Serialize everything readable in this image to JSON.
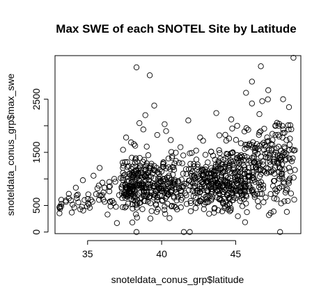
{
  "chart_data": {
    "type": "scatter",
    "title": "Max SWE of each SNOTEL Site by Latitude",
    "xlabel": "snoteldata_conus_grp$latitude",
    "ylabel": "snoteldata_conus_grp$max_swe",
    "xlim": [
      32.8,
      49.4
    ],
    "ylim": [
      -30,
      3320
    ],
    "xticks": [
      35,
      40,
      45
    ],
    "yticks": [
      0,
      500,
      1500,
      2500
    ],
    "grid": false,
    "legend": "none",
    "marker_color": "#000000",
    "clusters": [
      {
        "cx": 33.5,
        "cy": 420,
        "sx": 0.4,
        "sy": 180,
        "n": 14
      },
      {
        "cx": 34.6,
        "cy": 500,
        "sx": 0.5,
        "sy": 200,
        "n": 18
      },
      {
        "cx": 36.2,
        "cy": 520,
        "sx": 0.6,
        "sy": 230,
        "n": 30
      },
      {
        "cx": 37.8,
        "cy": 720,
        "sx": 0.35,
        "sy": 320,
        "n": 90
      },
      {
        "cx": 38.6,
        "cy": 820,
        "sx": 0.45,
        "sy": 380,
        "n": 90
      },
      {
        "cx": 39.6,
        "cy": 760,
        "sx": 0.5,
        "sy": 340,
        "n": 90
      },
      {
        "cx": 40.6,
        "cy": 800,
        "sx": 0.5,
        "sy": 380,
        "n": 70
      },
      {
        "cx": 41.8,
        "cy": 760,
        "sx": 0.55,
        "sy": 330,
        "n": 60
      },
      {
        "cx": 42.9,
        "cy": 820,
        "sx": 0.5,
        "sy": 360,
        "n": 70
      },
      {
        "cx": 43.8,
        "cy": 760,
        "sx": 0.45,
        "sy": 380,
        "n": 90
      },
      {
        "cx": 44.6,
        "cy": 820,
        "sx": 0.45,
        "sy": 400,
        "n": 100
      },
      {
        "cx": 45.5,
        "cy": 860,
        "sx": 0.5,
        "sy": 420,
        "n": 90
      },
      {
        "cx": 46.5,
        "cy": 1050,
        "sx": 0.5,
        "sy": 520,
        "n": 80
      },
      {
        "cx": 47.6,
        "cy": 1150,
        "sx": 0.5,
        "sy": 560,
        "n": 70
      },
      {
        "cx": 48.5,
        "cy": 1100,
        "sx": 0.35,
        "sy": 600,
        "n": 55
      }
    ],
    "highlights": [
      {
        "x": 48.9,
        "y": 3280
      },
      {
        "x": 38.3,
        "y": 3100
      },
      {
        "x": 39.2,
        "y": 2950
      },
      {
        "x": 46.7,
        "y": 3120
      },
      {
        "x": 46.1,
        "y": 2830
      },
      {
        "x": 45.7,
        "y": 2620
      },
      {
        "x": 48.2,
        "y": 2500
      },
      {
        "x": 47.2,
        "y": 2670
      },
      {
        "x": 48.6,
        "y": 2350
      },
      {
        "x": 39.5,
        "y": 2380
      },
      {
        "x": 38.9,
        "y": 2200
      },
      {
        "x": 38.5,
        "y": 2050
      },
      {
        "x": 40.2,
        "y": 2030
      },
      {
        "x": 41.8,
        "y": 2100
      },
      {
        "x": 44.7,
        "y": 2120
      },
      {
        "x": 43.9,
        "y": 1820
      },
      {
        "x": 44.3,
        "y": 1830
      },
      {
        "x": 40.3,
        "y": 1900
      },
      {
        "x": 37.6,
        "y": 1780
      },
      {
        "x": 42.6,
        "y": 1780
      },
      {
        "x": 38.3,
        "y": 0
      },
      {
        "x": 41.5,
        "y": 0
      },
      {
        "x": 41.9,
        "y": 0
      },
      {
        "x": 48.0,
        "y": 0
      },
      {
        "x": 35.4,
        "y": 1060
      },
      {
        "x": 46.1,
        "y": 2420
      },
      {
        "x": 47.9,
        "y": 2000
      },
      {
        "x": 45.1,
        "y": 2000
      },
      {
        "x": 36.8,
        "y": 1000
      },
      {
        "x": 46.6,
        "y": 2220
      }
    ]
  }
}
